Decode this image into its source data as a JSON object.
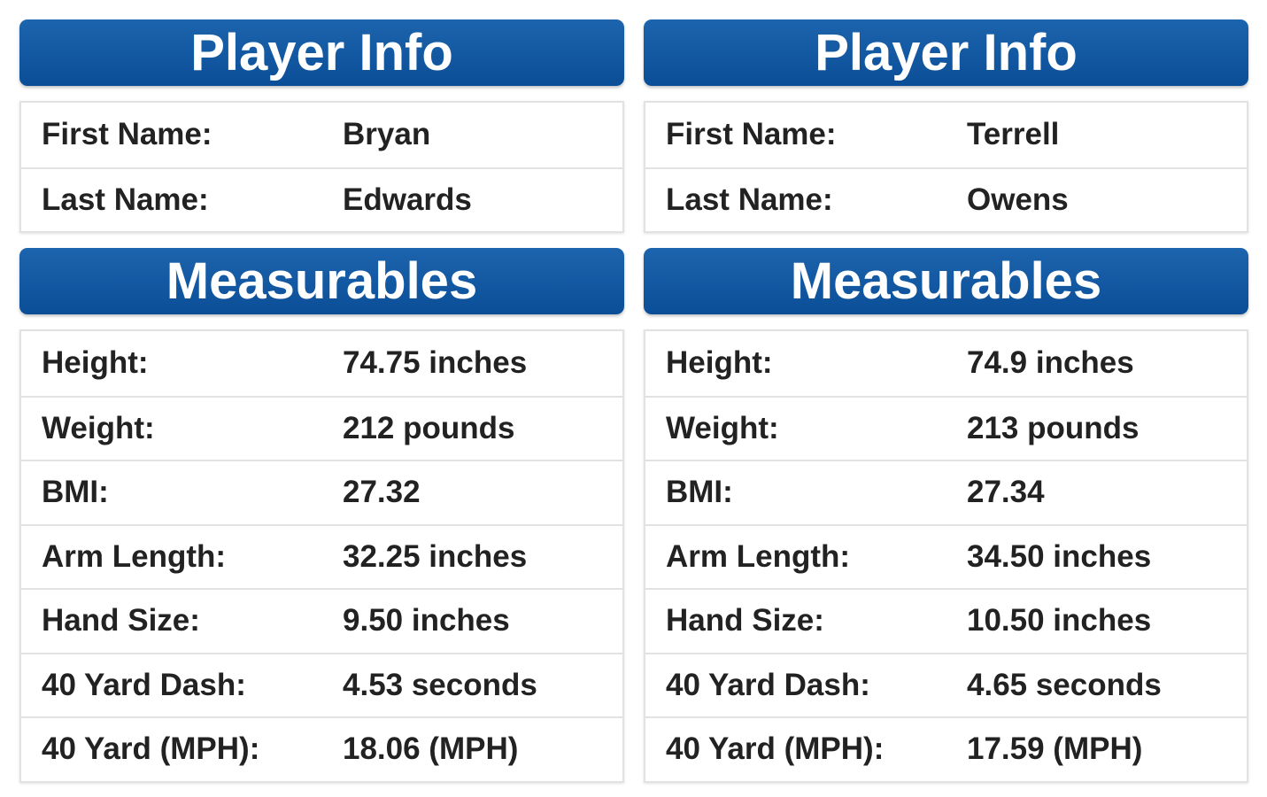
{
  "panels": [
    {
      "info_title": "Player Info",
      "info_rows": [
        [
          "First Name:",
          "Bryan"
        ],
        [
          "Last Name:",
          "Edwards"
        ]
      ],
      "measurables_title": "Measurables",
      "measurables_rows": [
        [
          "Height:",
          "74.75 inches"
        ],
        [
          "Weight:",
          "212 pounds"
        ],
        [
          "BMI:",
          "27.32"
        ],
        [
          "Arm Length:",
          "32.25 inches"
        ],
        [
          "Hand Size:",
          "9.50 inches"
        ],
        [
          "40 Yard Dash:",
          "4.53 seconds"
        ],
        [
          "40 Yard (MPH):",
          "18.06 (MPH)"
        ]
      ]
    },
    {
      "info_title": "Player Info",
      "info_rows": [
        [
          "First Name:",
          "Terrell"
        ],
        [
          "Last Name:",
          "Owens"
        ]
      ],
      "measurables_title": "Measurables",
      "measurables_rows": [
        [
          "Height:",
          "74.9 inches"
        ],
        [
          "Weight:",
          "213 pounds"
        ],
        [
          "BMI:",
          "27.34"
        ],
        [
          "Arm Length:",
          "34.50 inches"
        ],
        [
          "Hand Size:",
          "10.50 inches"
        ],
        [
          "40 Yard Dash:",
          "4.65 seconds"
        ],
        [
          "40 Yard (MPH):",
          "17.59 (MPH)"
        ]
      ]
    }
  ]
}
